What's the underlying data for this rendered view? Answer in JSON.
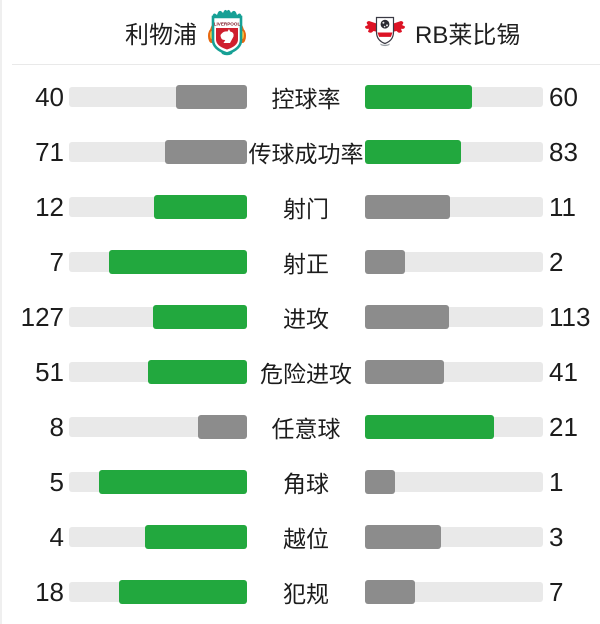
{
  "header": {
    "home_team": "利物浦",
    "away_team": "RB莱比锡",
    "home_logo": "liverpool-crest",
    "away_logo": "rb-leipzig-crest"
  },
  "colors": {
    "winner_bar": "#22a83e",
    "loser_bar": "#8c8c8c",
    "bar_track": "#e9e9e9",
    "text": "#1c1c1c",
    "divider": "#e9e9e9"
  },
  "stats": [
    {
      "label": "控球率",
      "home": 40,
      "away": 60
    },
    {
      "label": "传球成功率",
      "home": 71,
      "away": 83
    },
    {
      "label": "射门",
      "home": 12,
      "away": 11
    },
    {
      "label": "射正",
      "home": 7,
      "away": 2
    },
    {
      "label": "进攻",
      "home": 127,
      "away": 113
    },
    {
      "label": "危险进攻",
      "home": 51,
      "away": 41
    },
    {
      "label": "任意球",
      "home": 8,
      "away": 21
    },
    {
      "label": "角球",
      "home": 5,
      "away": 1
    },
    {
      "label": "越位",
      "home": 4,
      "away": 3
    },
    {
      "label": "犯规",
      "home": 18,
      "away": 7
    }
  ]
}
